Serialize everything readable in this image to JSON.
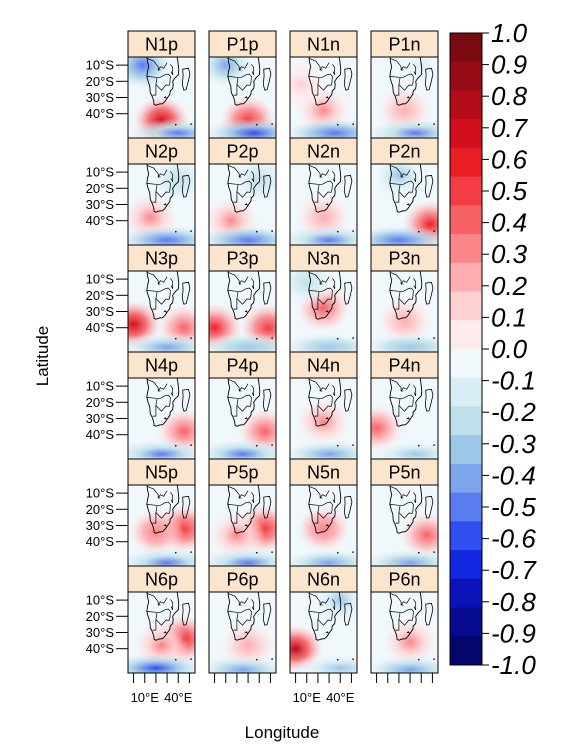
{
  "figure": {
    "xlabel": "Longitude",
    "ylabel": "Latitude",
    "lat_ticks": [
      "10°S",
      "20°S",
      "30°S",
      "40°S"
    ],
    "lon_ticks": [
      "10°E",
      "40°E"
    ]
  },
  "panels": [
    {
      "label": "N1p",
      "fields": [
        {
          "lon": 25,
          "lat": -44,
          "value": 0.75
        },
        {
          "lon": 8,
          "lat": -10,
          "value": -0.55
        },
        {
          "lon": 40,
          "lat": -52,
          "value": -0.5
        }
      ]
    },
    {
      "label": "P1p",
      "fields": [
        {
          "lon": 30,
          "lat": -44,
          "value": 0.55
        },
        {
          "lon": 10,
          "lat": -10,
          "value": -0.45
        },
        {
          "lon": 35,
          "lat": -52,
          "value": -0.6
        }
      ]
    },
    {
      "label": "N1n",
      "fields": [
        {
          "lon": 25,
          "lat": -38,
          "value": 0.3
        },
        {
          "lon": 35,
          "lat": -52,
          "value": -0.55
        },
        {
          "lon": 5,
          "lat": -22,
          "value": 0.15
        }
      ]
    },
    {
      "label": "P1n",
      "fields": [
        {
          "lon": 25,
          "lat": -38,
          "value": 0.25
        },
        {
          "lon": 35,
          "lat": -52,
          "value": -0.5
        },
        {
          "lon": 40,
          "lat": -10,
          "value": -0.15
        }
      ]
    },
    {
      "label": "N2p",
      "fields": [
        {
          "lon": 15,
          "lat": -38,
          "value": 0.3
        },
        {
          "lon": 30,
          "lat": -52,
          "value": -0.55
        },
        {
          "lon": 40,
          "lat": -15,
          "value": -0.2
        }
      ]
    },
    {
      "label": "P2p",
      "fields": [
        {
          "lon": 15,
          "lat": -40,
          "value": 0.3
        },
        {
          "lon": 30,
          "lat": -52,
          "value": -0.55
        },
        {
          "lon": 40,
          "lat": -15,
          "value": -0.2
        }
      ]
    },
    {
      "label": "N2n",
      "fields": [
        {
          "lon": 25,
          "lat": -38,
          "value": 0.25
        },
        {
          "lon": 30,
          "lat": -52,
          "value": -0.5
        }
      ]
    },
    {
      "label": "P2n",
      "fields": [
        {
          "lon": 48,
          "lat": -42,
          "value": 0.65
        },
        {
          "lon": 20,
          "lat": -52,
          "value": -0.55
        },
        {
          "lon": 20,
          "lat": -12,
          "value": -0.3
        }
      ]
    },
    {
      "label": "N3p",
      "fields": [
        {
          "lon": 0,
          "lat": -38,
          "value": 0.7
        },
        {
          "lon": 45,
          "lat": -40,
          "value": 0.45
        },
        {
          "lon": 30,
          "lat": -52,
          "value": -0.4
        }
      ]
    },
    {
      "label": "P3p",
      "fields": [
        {
          "lon": 0,
          "lat": -40,
          "value": 0.65
        },
        {
          "lon": 48,
          "lat": -40,
          "value": 0.55
        },
        {
          "lon": 30,
          "lat": -52,
          "value": -0.35
        }
      ]
    },
    {
      "label": "N3n",
      "fields": [
        {
          "lon": 25,
          "lat": -28,
          "value": 0.45
        },
        {
          "lon": 10,
          "lat": -12,
          "value": -0.2
        },
        {
          "lon": 30,
          "lat": -52,
          "value": -0.35
        }
      ]
    },
    {
      "label": "P3n",
      "fields": [
        {
          "lon": 25,
          "lat": -36,
          "value": 0.25
        },
        {
          "lon": 30,
          "lat": -52,
          "value": -0.35
        }
      ]
    },
    {
      "label": "N4p",
      "fields": [
        {
          "lon": 45,
          "lat": -38,
          "value": 0.4
        },
        {
          "lon": 25,
          "lat": -52,
          "value": -0.5
        }
      ]
    },
    {
      "label": "P4p",
      "fields": [
        {
          "lon": 45,
          "lat": -38,
          "value": 0.45
        },
        {
          "lon": 25,
          "lat": -52,
          "value": -0.5
        }
      ]
    },
    {
      "label": "N4n",
      "fields": [
        {
          "lon": 25,
          "lat": -32,
          "value": 0.3
        },
        {
          "lon": 30,
          "lat": -52,
          "value": -0.45
        }
      ]
    },
    {
      "label": "P4n",
      "fields": [
        {
          "lon": 0,
          "lat": -36,
          "value": 0.45
        },
        {
          "lon": 35,
          "lat": -52,
          "value": -0.3
        }
      ]
    },
    {
      "label": "N5p",
      "fields": [
        {
          "lon": 45,
          "lat": -32,
          "value": 0.55
        },
        {
          "lon": 20,
          "lat": -34,
          "value": 0.35
        },
        {
          "lon": 30,
          "lat": -53,
          "value": -0.5
        }
      ]
    },
    {
      "label": "P5p",
      "fields": [
        {
          "lon": 45,
          "lat": -32,
          "value": 0.55
        },
        {
          "lon": 20,
          "lat": -36,
          "value": 0.3
        },
        {
          "lon": 30,
          "lat": -53,
          "value": -0.5
        }
      ]
    },
    {
      "label": "N5n",
      "fields": [
        {
          "lon": 25,
          "lat": -32,
          "value": 0.35
        },
        {
          "lon": 30,
          "lat": -53,
          "value": -0.45
        }
      ]
    },
    {
      "label": "P5n",
      "fields": [
        {
          "lon": 45,
          "lat": -36,
          "value": 0.4
        },
        {
          "lon": 30,
          "lat": -53,
          "value": -0.4
        }
      ]
    },
    {
      "label": "N6p",
      "fields": [
        {
          "lon": 45,
          "lat": -34,
          "value": 0.6
        },
        {
          "lon": 25,
          "lat": -38,
          "value": 0.3
        },
        {
          "lon": 20,
          "lat": -52,
          "value": -0.6
        }
      ]
    },
    {
      "label": "P6p",
      "fields": [
        {
          "lon": 30,
          "lat": -38,
          "value": 0.2
        },
        {
          "lon": 25,
          "lat": -53,
          "value": -0.4
        }
      ]
    },
    {
      "label": "N6n",
      "fields": [
        {
          "lon": 0,
          "lat": -40,
          "value": 0.8
        },
        {
          "lon": 40,
          "lat": -10,
          "value": -0.3
        },
        {
          "lon": 40,
          "lat": -52,
          "value": -0.3
        }
      ]
    },
    {
      "label": "P6n",
      "fields": [
        {
          "lon": 30,
          "lat": -36,
          "value": 0.3
        },
        {
          "lon": 30,
          "lat": -53,
          "value": -0.4
        }
      ]
    }
  ],
  "colorbar": {
    "labels": [
      "1.0",
      "0.9",
      "0.8",
      "0.7",
      "0.6",
      "0.5",
      "0.4",
      "0.3",
      "0.2",
      "0.1",
      "0.0",
      "-0.1",
      "-0.2",
      "-0.3",
      "-0.4",
      "-0.5",
      "-0.6",
      "-0.7",
      "-0.8",
      "-0.9",
      "-1.0"
    ],
    "colors": [
      "#7a0a12",
      "#960c16",
      "#b40d19",
      "#d10f1d",
      "#ea1f25",
      "#f33c43",
      "#f66166",
      "#fa8689",
      "#fcaeb0",
      "#fdd0d2",
      "#fdebec",
      "#f1f8fc",
      "#d8edf4",
      "#bfe0ea",
      "#9dc7e8",
      "#7ea5ec",
      "#5a7cee",
      "#2f4ff0",
      "#1326e0",
      "#0a12b8",
      "#060a8e",
      "#03066a"
    ]
  },
  "strip_color": "#fce5cd"
}
